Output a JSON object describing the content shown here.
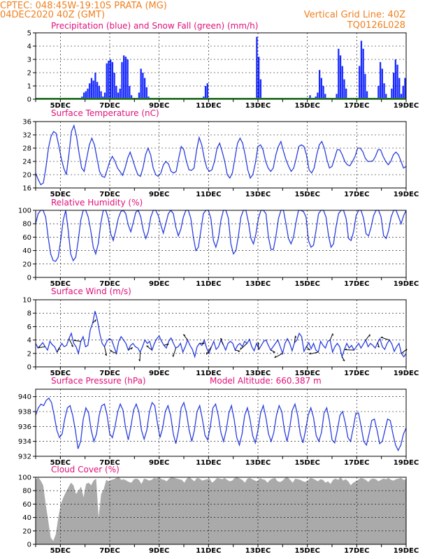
{
  "header": {
    "line1_left": "CPTEC:   048:45W-19:10S   PRATA (MG)",
    "line2_left": "04DEC2020 40Z (GMT)",
    "line2_right": "Vertical Grid Line: 40Z",
    "line3_right": "TQ0126L028"
  },
  "colors": {
    "header": "#f08020",
    "title": "#e0107a",
    "precip": "#1a2cff",
    "snow": "#1aa01a",
    "line": "#2a3fe0",
    "cloud": "#aaaaaa",
    "grid": "#000000"
  },
  "chart_data": [
    {
      "id": "precip",
      "type": "bar",
      "title": "Precipitation (blue) and Snow Fall (green) (mm/h)",
      "ylim": [
        0,
        5
      ],
      "yticks": [
        "0",
        "1",
        "2",
        "3",
        "4",
        "5"
      ],
      "xticks": [
        "5DEC",
        "7DEC",
        "9DEC",
        "11DEC",
        "13DEC",
        "15DEC",
        "17DEC",
        "19DEC"
      ],
      "series": [
        {
          "name": "Precipitation (blue)",
          "values": [
            0.1,
            0,
            0,
            0,
            0,
            0,
            0,
            0,
            0,
            0.1,
            0,
            0,
            0,
            0,
            0,
            0,
            0,
            0,
            0,
            0,
            0,
            0,
            0,
            0,
            0.2,
            0.5,
            0.6,
            0.8,
            1.2,
            1.6,
            1.4,
            2.0,
            1.3,
            1.0,
            0.6,
            0.2,
            0.5,
            2.7,
            2.9,
            3.0,
            2.8,
            2.0,
            1.0,
            0.5,
            0.8,
            2.8,
            3.3,
            3.2,
            3.0,
            1.0,
            0.3,
            0,
            0,
            0,
            0.5,
            2.3,
            2.0,
            1.6,
            0.9,
            0.2,
            0,
            0,
            0,
            0,
            0,
            0,
            0,
            0,
            0,
            0,
            0,
            0,
            0,
            0,
            0,
            0,
            0,
            0,
            0,
            0,
            0,
            0,
            0,
            0,
            0,
            0,
            0,
            0,
            0.2,
            1.0,
            1.2,
            0,
            0,
            0,
            0,
            0,
            0,
            0,
            0,
            0,
            0,
            0,
            0,
            0,
            0,
            0,
            0,
            0,
            0,
            0,
            0,
            0,
            0,
            0,
            0,
            0,
            4.7,
            3.2,
            1.5,
            0,
            0,
            0,
            0,
            0,
            0,
            0,
            0,
            0,
            0,
            0,
            0,
            0,
            0,
            0,
            0,
            0,
            0,
            0,
            0,
            0,
            0,
            0,
            0,
            0,
            0.3,
            0,
            0,
            0.2,
            0.5,
            2.2,
            1.6,
            1.0,
            0.4,
            0,
            0,
            0,
            0,
            0,
            0.4,
            3.8,
            3.3,
            2.5,
            1.5,
            0.8,
            0,
            0,
            0,
            0,
            0,
            0,
            2.5,
            4.4,
            3.8,
            1.9,
            0.6,
            0,
            0,
            0,
            0,
            0,
            1.0,
            2.8,
            2.3,
            1.2,
            0.4,
            0,
            0,
            0.8,
            2.0,
            3.0,
            2.6,
            1.6,
            0.4,
            1.0,
            1.6
          ]
        },
        {
          "name": "Snow Fall (green)",
          "values": [
            0
          ]
        }
      ]
    },
    {
      "id": "temp",
      "type": "line",
      "title": "Surface Temperature (nC)",
      "ylim": [
        16,
        36
      ],
      "yticks": [
        "16",
        "20",
        "24",
        "28",
        "32",
        "36"
      ],
      "xticks": [
        "5DEC",
        "7DEC",
        "9DEC",
        "11DEC",
        "13DEC",
        "15DEC",
        "17DEC",
        "19DEC"
      ],
      "values": [
        20.5,
        18.5,
        17.0,
        17.5,
        22,
        28,
        31.5,
        33,
        32.5,
        29,
        25,
        22,
        20,
        26,
        33,
        34.8,
        31.5,
        26.5,
        22,
        21,
        25,
        29,
        31,
        29,
        25,
        21,
        19.5,
        19.2,
        21.5,
        24,
        25.5,
        24.2,
        22,
        21,
        19.8,
        22,
        25,
        26.8,
        24.5,
        22,
        20,
        19.5,
        22,
        26,
        28,
        26,
        22,
        20,
        19.5,
        20.5,
        23,
        24,
        23.2,
        21,
        20.5,
        21,
        25,
        28.5,
        27.5,
        24,
        21.5,
        21.3,
        22,
        27.5,
        31.2,
        29,
        25,
        22,
        21,
        21.5,
        24,
        28,
        29.5,
        27,
        24,
        20,
        19,
        20.5,
        25,
        29.5,
        31,
        29.5,
        26,
        21.5,
        19,
        20,
        23.5,
        28.5,
        29,
        27.5,
        24,
        22,
        21,
        22,
        26,
        28.5,
        30,
        27,
        24.5,
        22.5,
        21,
        22,
        25,
        28.5,
        29,
        28.5,
        26,
        21.5,
        20.5,
        22,
        26,
        29,
        30,
        28,
        24.5,
        22,
        22.5,
        25,
        27.5,
        27.5,
        26,
        24,
        23,
        22.7,
        24,
        25.5,
        28,
        28,
        27,
        25,
        24,
        24,
        24.2,
        25.5,
        27.5,
        27.5,
        25.5,
        24,
        23,
        24,
        26,
        26.8,
        26,
        24,
        22,
        22.5
      ]
    },
    {
      "id": "rh",
      "type": "line",
      "title": "Relative Humidity (%)",
      "ylim": [
        0,
        100
      ],
      "yticks": [
        "0",
        "20",
        "40",
        "60",
        "80",
        "100"
      ],
      "xticks": [
        "5DEC",
        "7DEC",
        "9DEC",
        "11DEC",
        "13DEC",
        "15DEC",
        "17DEC",
        "19DEC"
      ],
      "values": [
        80,
        95,
        100,
        100,
        90,
        60,
        35,
        25,
        24,
        30,
        55,
        85,
        100,
        70,
        35,
        25,
        30,
        55,
        85,
        100,
        100,
        90,
        70,
        45,
        35,
        50,
        80,
        100,
        100,
        88,
        65,
        55,
        70,
        88,
        98,
        100,
        95,
        78,
        68,
        82,
        97,
        100,
        90,
        70,
        58,
        68,
        90,
        100,
        100,
        92,
        78,
        66,
        80,
        95,
        100,
        95,
        75,
        62,
        72,
        90,
        100,
        100,
        88,
        60,
        40,
        45,
        70,
        95,
        100,
        100,
        88,
        55,
        45,
        58,
        85,
        100,
        100,
        88,
        50,
        35,
        40,
        62,
        90,
        100,
        100,
        82,
        58,
        50,
        65,
        88,
        100,
        100,
        95,
        60,
        42,
        42,
        62,
        88,
        100,
        100,
        80,
        58,
        50,
        60,
        82,
        100,
        100,
        98,
        90,
        55,
        45,
        48,
        70,
        95,
        100,
        100,
        90,
        62,
        45,
        50,
        75,
        95,
        100,
        100,
        88,
        58,
        55,
        68,
        92,
        100,
        100,
        88,
        65,
        62,
        75,
        92,
        100,
        100,
        90,
        62,
        58,
        70,
        90,
        100,
        100,
        90,
        80,
        92,
        100
      ]
    },
    {
      "id": "wind",
      "type": "line",
      "title": "Surface Wind (m/s)",
      "ylim": [
        0,
        10
      ],
      "yticks": [
        "0",
        "2",
        "4",
        "6",
        "8",
        "10"
      ],
      "xticks": [
        "5DEC",
        "7DEC",
        "9DEC",
        "11DEC",
        "13DEC",
        "15DEC",
        "17DEC",
        "19DEC"
      ],
      "values": [
        3.5,
        2.8,
        3.2,
        3.6,
        3.0,
        2.5,
        3.8,
        3.3,
        3.0,
        2.2,
        2.8,
        3.5,
        3.0,
        3.2,
        4.2,
        5.0,
        3.5,
        3.0,
        2.0,
        3.8,
        4.5,
        3.0,
        3.2,
        5.5,
        6.5,
        8.3,
        7.0,
        5.0,
        3.5,
        3.0,
        3.8,
        4.2,
        4.0,
        3.0,
        2.0,
        3.8,
        4.5,
        4.0,
        3.5,
        2.5,
        3.2,
        3.5,
        3.0,
        2.8,
        2.2,
        3.0,
        4.0,
        3.5,
        3.8,
        2.5,
        3.5,
        4.2,
        4.6,
        3.8,
        3.2,
        2.8,
        3.8,
        4.3,
        3.5,
        2.8,
        3.0,
        3.5,
        2.2,
        3.0,
        4.0,
        3.2,
        2.6,
        1.5,
        3.0,
        3.5,
        3.2,
        4.0,
        2.8,
        2.0,
        3.0,
        3.8,
        2.6,
        3.0,
        4.0,
        3.3,
        2.5,
        3.5,
        3.8,
        3.5,
        2.5,
        3.2,
        3.5,
        3.0,
        3.8,
        3.5,
        4.1,
        3.0,
        2.4,
        3.5,
        2.6,
        3.2,
        3.8,
        4.0,
        3.2,
        2.5,
        3.0,
        3.5,
        4.0,
        3.0,
        2.0,
        3.5,
        4.2,
        3.5,
        2.4,
        3.6,
        4.0,
        5.0,
        4.5,
        2.3,
        3.0,
        3.6,
        2.7,
        3.5,
        2.5,
        2.2,
        3.8,
        3.2,
        2.8,
        3.8,
        4.0,
        2.2,
        3.0,
        3.5,
        3.0,
        1.5,
        2.6,
        3.5,
        2.8,
        3.2,
        2.5,
        3.0,
        3.5,
        2.8,
        3.4,
        4.0,
        3.0,
        3.5,
        3.2,
        2.8,
        3.6,
        4.2,
        3.0,
        2.6,
        3.5,
        4.0,
        3.4,
        2.3,
        3.0,
        3.5,
        2.0,
        1.5,
        2.0
      ]
    },
    {
      "id": "pressure",
      "type": "line",
      "title": "Surface Pressure (hPa)",
      "subtitle": "Model Altitude: 660.387 m",
      "ylim": [
        932,
        941
      ],
      "yticks": [
        "932",
        "934",
        "936",
        "938",
        "940"
      ],
      "xticks": [
        "5DEC",
        "7DEC",
        "9DEC",
        "11DEC",
        "13DEC",
        "15DEC",
        "17DEC",
        "19DEC"
      ],
      "values": [
        937.5,
        938.5,
        939.0,
        938.8,
        939.5,
        939.8,
        939.2,
        937.5,
        935.5,
        934.5,
        935.0,
        937.0,
        938.5,
        938.8,
        937.5,
        935.5,
        933.0,
        934.0,
        937.0,
        938.5,
        937.8,
        935.5,
        934.0,
        935.0,
        937.5,
        938.8,
        939.0,
        937.5,
        935.0,
        934.5,
        936.0,
        938.0,
        939.0,
        938.2,
        935.8,
        934.2,
        936.0,
        938.2,
        939.0,
        938.0,
        935.5,
        934.3,
        935.5,
        938.0,
        939.2,
        938.8,
        936.5,
        934.5,
        935.8,
        938.0,
        938.8,
        937.5,
        935.0,
        933.7,
        935.5,
        938.5,
        939.2,
        937.8,
        935.5,
        934.0,
        935.5,
        938.0,
        938.8,
        937.0,
        934.8,
        934.2,
        936.0,
        938.5,
        939.0,
        937.5,
        935.2,
        934.0,
        935.5,
        937.8,
        938.8,
        937.0,
        934.5,
        933.5,
        935.0,
        937.5,
        938.5,
        937.0,
        934.8,
        933.8,
        935.5,
        937.8,
        938.8,
        937.2,
        935.0,
        934.0,
        935.2,
        937.5,
        938.8,
        938.0,
        935.5,
        934.0,
        935.8,
        938.2,
        939.0,
        937.5,
        935.0,
        933.8,
        935.5,
        937.5,
        938.5,
        937.2,
        934.8,
        934.0,
        935.2,
        937.8,
        938.5,
        936.8,
        934.2,
        933.8,
        935.5,
        937.5,
        938.0,
        936.5,
        934.5,
        934.0,
        935.8,
        937.8,
        937.8,
        936.0,
        934.0,
        933.5,
        935.0,
        936.8,
        937.0,
        935.5,
        933.7,
        934.0,
        935.5,
        937.0,
        936.8,
        935.0,
        933.5,
        932.8,
        933.5,
        935.0,
        935.8
      ]
    },
    {
      "id": "cloud",
      "type": "area",
      "title": "Cloud Cover (%)",
      "ylim": [
        0,
        100
      ],
      "yticks": [
        "0",
        "20",
        "40",
        "60",
        "80",
        "100"
      ],
      "xticks": [
        "5DEC",
        "7DEC",
        "9DEC",
        "11DEC",
        "13DEC",
        "15DEC",
        "17DEC",
        "19DEC"
      ],
      "values": [
        96,
        100,
        95,
        88,
        60,
        35,
        10,
        5,
        15,
        40,
        60,
        70,
        78,
        85,
        92,
        88,
        75,
        80,
        86,
        70,
        90,
        92,
        88,
        95,
        98,
        40,
        75,
        82,
        96,
        94,
        96,
        97,
        99,
        100,
        96,
        97,
        95,
        93,
        92,
        97,
        98,
        96,
        90,
        98,
        97,
        95,
        96,
        99,
        98,
        100,
        97,
        96,
        94,
        98,
        100,
        99,
        98,
        97,
        96,
        92,
        98,
        100,
        97,
        94,
        99,
        98,
        95,
        96,
        97,
        98,
        92,
        95,
        99,
        98,
        97,
        99,
        96,
        94,
        95,
        99,
        100,
        98,
        96,
        92,
        98,
        99,
        97,
        95,
        94,
        99,
        97,
        96,
        92,
        96,
        98,
        99,
        94,
        93,
        95,
        99,
        100,
        96,
        92,
        98,
        97,
        96,
        94,
        93,
        95,
        99,
        98,
        96,
        94,
        97,
        96,
        92,
        94,
        90,
        96,
        98,
        96,
        100,
        95,
        97,
        94,
        88,
        92,
        94,
        96,
        99,
        98,
        96,
        93,
        97,
        98,
        97,
        94,
        96,
        98,
        97,
        99,
        96,
        95,
        97,
        98,
        99,
        96,
        97
      ]
    }
  ]
}
